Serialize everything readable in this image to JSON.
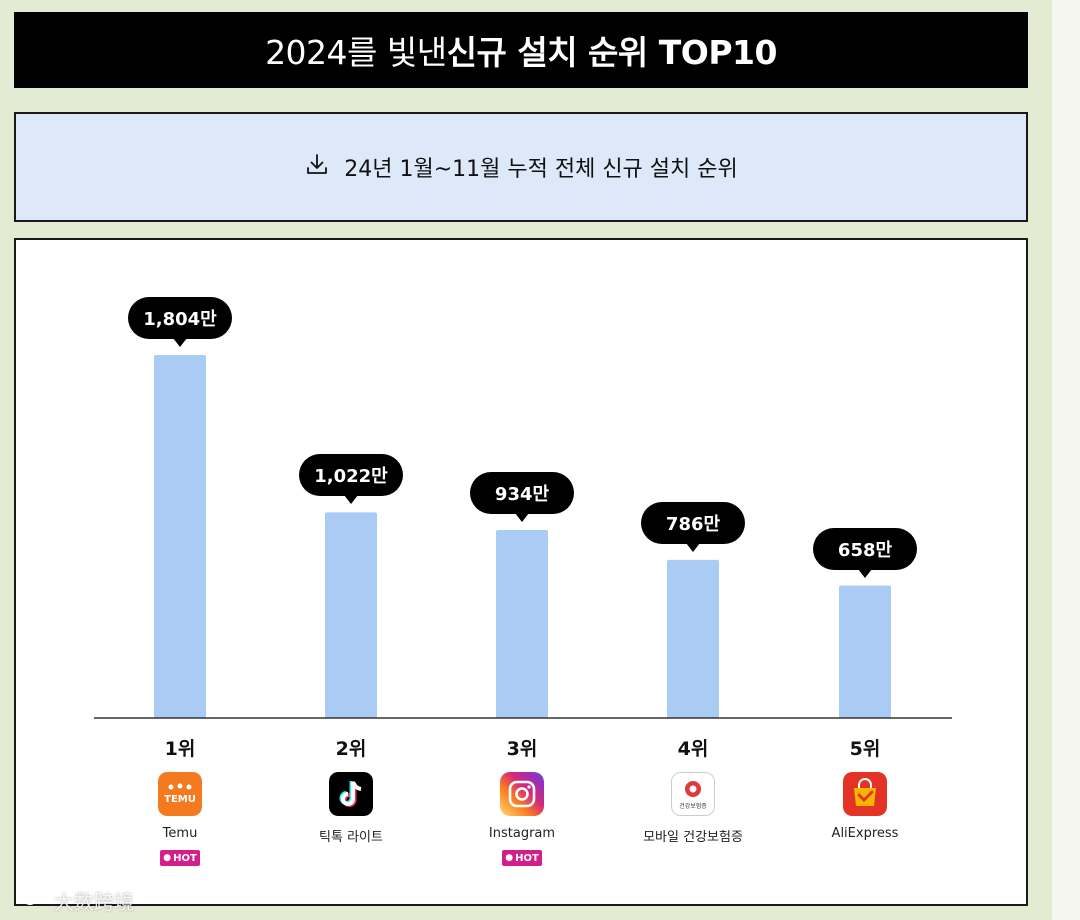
{
  "header": {
    "title_regular": "2024를 빛낸 ",
    "title_bold": "신규 설치 순위 TOP10"
  },
  "subheader": {
    "icon": "download-icon",
    "text": "24년 1월~11월 누적 전체 신규 설치 순위"
  },
  "chart_data": {
    "type": "bar",
    "categories": [
      "1위",
      "2위",
      "3위",
      "4위",
      "5위"
    ],
    "values": [
      1804,
      1022,
      934,
      786,
      658
    ],
    "value_labels": [
      "1,804만",
      "1,022만",
      "934만",
      "786만",
      "658만"
    ],
    "apps": [
      {
        "name": "Temu",
        "hot": true,
        "icon": "temu-icon"
      },
      {
        "name": "틱톡 라이트",
        "hot": false,
        "icon": "tiktok-icon"
      },
      {
        "name": "Instagram",
        "hot": true,
        "icon": "instagram-icon"
      },
      {
        "name": "모바일 건강보험증",
        "hot": false,
        "icon": "health-insurance-icon"
      },
      {
        "name": "AliExpress",
        "hot": false,
        "icon": "aliexpress-icon"
      }
    ],
    "hot_label": "HOT",
    "ylim": [
      0,
      2000
    ],
    "bar_color": "#a9cbf4",
    "grid": false
  },
  "icons": {
    "temu_text": "TEMU",
    "health_text": "건강보험증"
  },
  "watermark": {
    "text": "大数跨境"
  }
}
